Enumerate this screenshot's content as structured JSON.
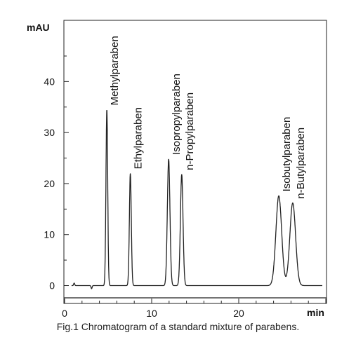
{
  "caption": "Fig.1 Chromatogram of a standard mixture of parabens.",
  "chart_data": {
    "type": "line",
    "title": "",
    "xlabel": "min",
    "ylabel": "mAU",
    "xlim": [
      0,
      30
    ],
    "ylim": [
      -3.5,
      52
    ],
    "x_ticks": [
      0,
      10,
      20
    ],
    "y_ticks": [
      0,
      10,
      20,
      30,
      40
    ],
    "grid": false,
    "line_color": "#222222",
    "peaks": [
      {
        "name": "Methylparaben",
        "rt": 4.85,
        "height": 34.5,
        "width": 0.1
      },
      {
        "name": "Ethylparaben",
        "rt": 7.55,
        "height": 22.0,
        "width": 0.11
      },
      {
        "name": "Isopropylparaben",
        "rt": 11.95,
        "height": 24.8,
        "width": 0.15
      },
      {
        "name": "n-Propylparaben",
        "rt": 13.45,
        "height": 21.8,
        "width": 0.15
      },
      {
        "name": "Isobutylparaben",
        "rt": 24.6,
        "height": 17.6,
        "width": 0.33
      },
      {
        "name": "n-Butylparaben",
        "rt": 26.2,
        "height": 16.2,
        "width": 0.33
      }
    ],
    "baseline_artifacts": [
      {
        "x": 1.1,
        "y": 0.5
      },
      {
        "x": 3.1,
        "y": -0.6
      }
    ]
  }
}
